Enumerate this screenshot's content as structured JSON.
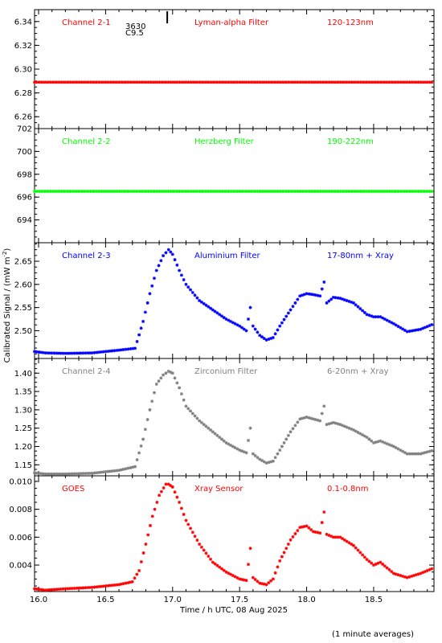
{
  "figure": {
    "ylabel": "Calibrated Signal / (mW m",
    "ylabel_sup": "-2",
    "ylabel_end": ")",
    "xlabel": "Time / h UTC, 08 Aug 2025",
    "footnote": "(1 minute averages)"
  },
  "chart_data": [
    {
      "type": "scatter",
      "channel": "Channel 2-1",
      "filter": "Lyman-alpha Filter",
      "band": "120-123nm",
      "color": "#ff0000",
      "ylim": [
        6.25,
        6.35
      ],
      "yticks": [
        "6.26",
        "6.28",
        "6.30",
        "6.32",
        "6.34"
      ],
      "xlim": [
        15.97,
        18.95
      ],
      "overlay_text": [
        "3630",
        "C9.5"
      ],
      "series": [
        {
          "x": [
            15.97,
            18.95
          ],
          "y": [
            6.289,
            6.289
          ]
        }
      ]
    },
    {
      "type": "scatter",
      "channel": "Channel 2-2",
      "filter": "Herzberg Filter",
      "band": "190-222nm",
      "color": "#00ff00",
      "ylim": [
        692,
        702
      ],
      "yticks": [
        "694",
        "696",
        "698",
        "700",
        "702"
      ],
      "xlim": [
        15.97,
        18.95
      ],
      "series": [
        {
          "x": [
            15.97,
            18.95
          ],
          "y": [
            696.5,
            696.5
          ]
        }
      ]
    },
    {
      "type": "scatter",
      "channel": "Channel 2-3",
      "filter": "Aluminium Filter",
      "band": "17-80nm + Xray",
      "color": "#0000ff",
      "ylim": [
        2.44,
        2.69
      ],
      "yticks": [
        "2.50",
        "2.55",
        "2.60",
        "2.65"
      ],
      "xlim": [
        15.97,
        18.95
      ],
      "series": [
        {
          "x": [
            15.97,
            16.05,
            16.2,
            16.4,
            16.6,
            16.72,
            16.78,
            16.83,
            16.88,
            16.93,
            16.97,
            17.0,
            17.05,
            17.1,
            17.2,
            17.3,
            17.4,
            17.5,
            17.55,
            17.58,
            17.6,
            17.65,
            17.7,
            17.75,
            17.8,
            17.88,
            17.95,
            18.0,
            18.05,
            18.1,
            18.13,
            18.15,
            18.2,
            18.25,
            18.35,
            18.45,
            18.5,
            18.55,
            18.65,
            18.75,
            18.85,
            18.95
          ],
          "y": [
            2.455,
            2.452,
            2.451,
            2.452,
            2.458,
            2.462,
            2.52,
            2.58,
            2.63,
            2.662,
            2.675,
            2.665,
            2.63,
            2.6,
            2.565,
            2.545,
            2.525,
            2.51,
            2.5,
            2.55,
            2.51,
            2.49,
            2.48,
            2.485,
            2.51,
            2.545,
            2.575,
            2.58,
            2.578,
            2.575,
            2.605,
            2.56,
            2.572,
            2.57,
            2.56,
            2.535,
            2.53,
            2.53,
            2.515,
            2.498,
            2.503,
            2.515
          ]
        }
      ]
    },
    {
      "type": "scatter",
      "channel": "Channel 2-4",
      "filter": "Zirconium Filter",
      "band": "6-20nm + Xray",
      "color": "#808080",
      "ylim": [
        1.12,
        1.44
      ],
      "yticks": [
        "1.15",
        "1.20",
        "1.25",
        "1.30",
        "1.35",
        "1.40"
      ],
      "xlim": [
        15.97,
        18.95
      ],
      "series": [
        {
          "x": [
            15.97,
            16.05,
            16.2,
            16.4,
            16.6,
            16.72,
            16.78,
            16.83,
            16.88,
            16.93,
            16.97,
            17.0,
            17.05,
            17.1,
            17.2,
            17.3,
            17.4,
            17.5,
            17.55,
            17.58,
            17.6,
            17.65,
            17.7,
            17.75,
            17.8,
            17.88,
            17.95,
            18.0,
            18.05,
            18.1,
            18.13,
            18.15,
            18.2,
            18.25,
            18.35,
            18.45,
            18.5,
            18.55,
            18.65,
            18.75,
            18.85,
            18.95
          ],
          "y": [
            1.128,
            1.125,
            1.125,
            1.127,
            1.135,
            1.145,
            1.22,
            1.3,
            1.37,
            1.395,
            1.405,
            1.4,
            1.36,
            1.31,
            1.27,
            1.24,
            1.21,
            1.19,
            1.183,
            1.25,
            1.18,
            1.165,
            1.155,
            1.16,
            1.19,
            1.24,
            1.275,
            1.28,
            1.275,
            1.27,
            1.31,
            1.26,
            1.265,
            1.26,
            1.245,
            1.225,
            1.21,
            1.215,
            1.2,
            1.18,
            1.18,
            1.19
          ]
        }
      ]
    },
    {
      "type": "scatter",
      "channel": "GOES",
      "filter": "Xray Sensor",
      "band": "0.1-0.8nm",
      "color": "#ff0000",
      "ylim": [
        0.0021,
        0.0104
      ],
      "yticks": [
        "0.004",
        "0.006",
        "0.008",
        "0.010"
      ],
      "xlim": [
        15.97,
        18.95
      ],
      "series": [
        {
          "x": [
            15.97,
            16.05,
            16.2,
            16.4,
            16.6,
            16.7,
            16.75,
            16.8,
            16.85,
            16.9,
            16.95,
            16.97,
            17.0,
            17.05,
            17.1,
            17.2,
            17.3,
            17.4,
            17.5,
            17.55,
            17.58,
            17.6,
            17.65,
            17.7,
            17.75,
            17.8,
            17.88,
            17.95,
            18.0,
            18.05,
            18.1,
            18.13,
            18.15,
            18.2,
            18.25,
            18.35,
            18.45,
            18.5,
            18.55,
            18.65,
            18.75,
            18.85,
            18.95
          ],
          "y": [
            0.0023,
            0.0022,
            0.0023,
            0.0024,
            0.0026,
            0.0028,
            0.0036,
            0.0055,
            0.0075,
            0.009,
            0.0098,
            0.0098,
            0.0096,
            0.0085,
            0.0072,
            0.0055,
            0.0042,
            0.0035,
            0.003,
            0.0029,
            0.0052,
            0.0031,
            0.0027,
            0.0026,
            0.003,
            0.0043,
            0.0058,
            0.0067,
            0.0068,
            0.0064,
            0.0063,
            0.0078,
            0.0062,
            0.006,
            0.006,
            0.0054,
            0.0044,
            0.004,
            0.0042,
            0.0034,
            0.0031,
            0.0034,
            0.0038
          ]
        }
      ]
    }
  ],
  "xaxis": {
    "ticks": [
      16.0,
      16.5,
      17.0,
      17.5,
      18.0,
      18.5
    ],
    "tick_labels": [
      "16.0",
      "16.5",
      "17.0",
      "17.5",
      "18.0",
      "18.5"
    ],
    "minor_step": 0.1
  }
}
